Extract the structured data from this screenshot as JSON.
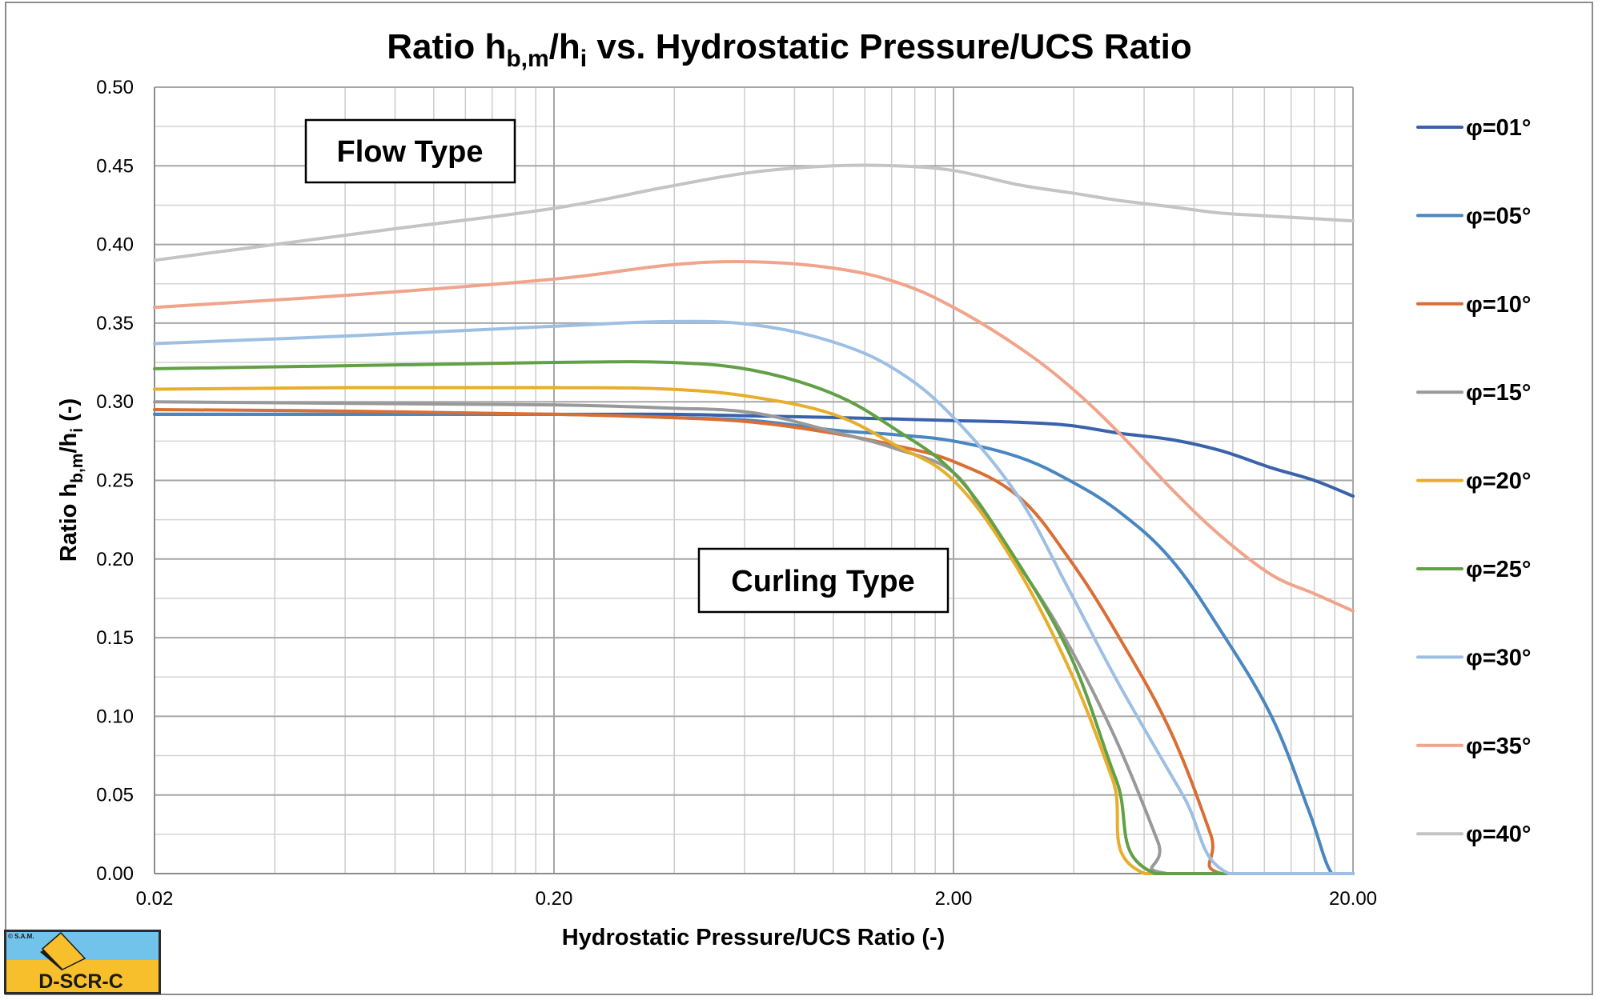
{
  "chart_data": {
    "type": "line",
    "title": "Ratio h_b,m/h_i vs. Hydrostatic Pressure/UCS Ratio",
    "title_parts": {
      "pre": "Ratio h",
      "sub1": "b,m",
      "mid": "/h",
      "sub2": "i",
      "post": " vs. Hydrostatic Pressure/UCS Ratio"
    },
    "xlabel": "Hydrostatic Pressure/UCS Ratio (-)",
    "ylabel": "Ratio h_b,m/h_i (-)",
    "ylabel_parts": {
      "pre": "Ratio h",
      "sub1": "b,m",
      "mid": "/h",
      "sub2": "i",
      "post": " (-)"
    },
    "x_scale": "log",
    "xlim": [
      0.02,
      20
    ],
    "ylim": [
      0,
      0.5
    ],
    "x_ticks": [
      0.02,
      0.2,
      2,
      20
    ],
    "x_tick_labels": [
      "0.02",
      "0.20",
      "2.00",
      "20.00"
    ],
    "y_ticks": [
      0,
      0.05,
      0.1,
      0.15,
      0.2,
      0.25,
      0.3,
      0.35,
      0.4,
      0.45,
      0.5
    ],
    "y_tick_labels": [
      "0.00",
      "0.05",
      "0.10",
      "0.15",
      "0.20",
      "0.25",
      "0.30",
      "0.35",
      "0.40",
      "0.45",
      "0.50"
    ],
    "grid": true,
    "legend_position": "right",
    "annotations": [
      {
        "text": "Flow Type",
        "x": 0.04,
        "y": 0.461
      },
      {
        "text": "Curling Type",
        "x": 0.79,
        "y": 0.189
      }
    ],
    "series": [
      {
        "name": "φ=01°",
        "color": "#3a62aa",
        "x": [
          0.02,
          0.063,
          0.2,
          0.39,
          0.63,
          1.0,
          1.44,
          2.0,
          2.9,
          3.9,
          5.2,
          7.0,
          9.3,
          12.5,
          16,
          20
        ],
        "y": [
          0.292,
          0.292,
          0.292,
          0.292,
          0.291,
          0.29,
          0.289,
          0.288,
          0.287,
          0.285,
          0.28,
          0.276,
          0.269,
          0.258,
          0.25,
          0.24
        ]
      },
      {
        "name": "φ=05°",
        "color": "#4a86c0",
        "x": [
          0.02,
          0.063,
          0.2,
          0.39,
          0.63,
          1.0,
          1.44,
          2.0,
          2.9,
          3.9,
          5.2,
          7.0,
          9.3,
          12.5,
          15.5,
          17.7,
          20
        ],
        "y": [
          0.292,
          0.292,
          0.292,
          0.29,
          0.288,
          0.282,
          0.279,
          0.275,
          0.265,
          0.25,
          0.23,
          0.2,
          0.155,
          0.1,
          0.04,
          0.0,
          0.0
        ]
      },
      {
        "name": "φ=10°",
        "color": "#d96f35",
        "x": [
          0.02,
          0.063,
          0.2,
          0.39,
          0.63,
          1.0,
          1.44,
          2.0,
          2.9,
          3.9,
          5.2,
          7.0,
          8.8,
          9.38,
          20
        ],
        "y": [
          0.295,
          0.294,
          0.292,
          0.29,
          0.287,
          0.28,
          0.272,
          0.262,
          0.24,
          0.2,
          0.15,
          0.09,
          0.025,
          0.0,
          0.0
        ]
      },
      {
        "name": "φ=15°",
        "color": "#999999",
        "x": [
          0.02,
          0.063,
          0.2,
          0.39,
          0.63,
          1.0,
          1.44,
          2.0,
          2.5,
          3.6,
          5.0,
          6.5,
          6.86,
          20
        ],
        "y": [
          0.3,
          0.299,
          0.298,
          0.296,
          0.293,
          0.281,
          0.27,
          0.255,
          0.22,
          0.16,
          0.09,
          0.02,
          0.0,
          0.0
        ]
      },
      {
        "name": "φ=20°",
        "color": "#e7ae2c",
        "x": [
          0.02,
          0.063,
          0.2,
          0.39,
          0.63,
          1.0,
          1.44,
          2.0,
          2.8,
          3.9,
          5.0,
          6.03,
          20
        ],
        "y": [
          0.308,
          0.309,
          0.309,
          0.308,
          0.303,
          0.292,
          0.272,
          0.25,
          0.2,
          0.13,
          0.06,
          0.0,
          0.0
        ]
      },
      {
        "name": "φ=25°",
        "color": "#62a047",
        "x": [
          0.02,
          0.063,
          0.2,
          0.39,
          0.63,
          1.0,
          1.44,
          2.0,
          2.7,
          3.9,
          5.1,
          6.4,
          20
        ],
        "y": [
          0.321,
          0.323,
          0.325,
          0.325,
          0.32,
          0.305,
          0.282,
          0.255,
          0.21,
          0.14,
          0.06,
          0.0,
          0.0
        ]
      },
      {
        "name": "φ=30°",
        "color": "#9dbfe4",
        "x": [
          0.02,
          0.063,
          0.2,
          0.39,
          0.63,
          1.0,
          1.44,
          2.0,
          2.9,
          3.9,
          5.2,
          7.5,
          9.78,
          20
        ],
        "y": [
          0.337,
          0.342,
          0.348,
          0.351,
          0.349,
          0.338,
          0.32,
          0.29,
          0.24,
          0.18,
          0.12,
          0.05,
          0.0,
          0.0
        ]
      },
      {
        "name": "φ=35°",
        "color": "#f0a48b",
        "x": [
          0.02,
          0.063,
          0.2,
          0.39,
          0.63,
          1.0,
          1.44,
          2.0,
          2.9,
          3.9,
          5.2,
          7.0,
          9.3,
          12.5,
          16,
          20
        ],
        "y": [
          0.36,
          0.368,
          0.378,
          0.387,
          0.389,
          0.385,
          0.376,
          0.36,
          0.335,
          0.31,
          0.28,
          0.245,
          0.215,
          0.19,
          0.178,
          0.167
        ]
      },
      {
        "name": "φ=40°",
        "color": "#c4c4c4",
        "x": [
          0.02,
          0.04,
          0.08,
          0.2,
          0.39,
          0.63,
          1.0,
          1.44,
          2.0,
          2.9,
          3.9,
          5.2,
          7.0,
          9.3,
          12.5,
          20
        ],
        "y": [
          0.39,
          0.4,
          0.41,
          0.423,
          0.437,
          0.446,
          0.45,
          0.45,
          0.447,
          0.438,
          0.433,
          0.428,
          0.424,
          0.42,
          0.418,
          0.415
        ]
      }
    ]
  },
  "logo": {
    "copyright": "© S.A.M.",
    "label": "D-SCR-C",
    "colors": {
      "sky": "#72c3ec",
      "ground": "#f7bf2c",
      "border": "#2b2b2b"
    }
  }
}
